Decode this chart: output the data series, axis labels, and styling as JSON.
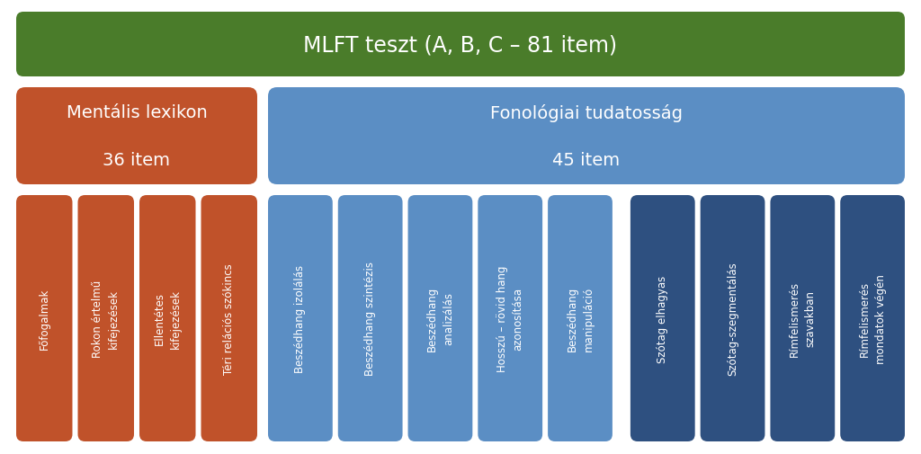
{
  "title": "MLFT teszt (A, B, C – 81 item)",
  "title_bg": "#4a7c2a",
  "left_block_title": "Mentális lexikon\n\n36 item",
  "right_block_title": "Fonológiai tudatosság\n\n45 item",
  "left_block_color": "#c0522a",
  "right_block_color": "#5b8ec4",
  "left_items": [
    "Főfogalmak",
    "Rokon értelmű\nkifejezések",
    "Ellentétes\nkifejezések",
    "Téri relációs szókincs"
  ],
  "right_items_light": [
    "Beszédhang izolálás",
    "Beszédhang szintézis",
    "Beszédhang\nanalizálás",
    "Hosszú – rövid hang\nazonosítása",
    "Beszédhang\nmanipuláció"
  ],
  "right_items_dark": [
    "Szótag elhagyas",
    "Szótag-szegmentálás",
    "Rímfelismerés\nszavakban",
    "Rímfelismerés\nmondatok végén"
  ],
  "left_item_color": "#c0522a",
  "right_item_light_color": "#5b8ec4",
  "right_item_dark_color": "#2e5080",
  "bg_color": "#ffffff"
}
